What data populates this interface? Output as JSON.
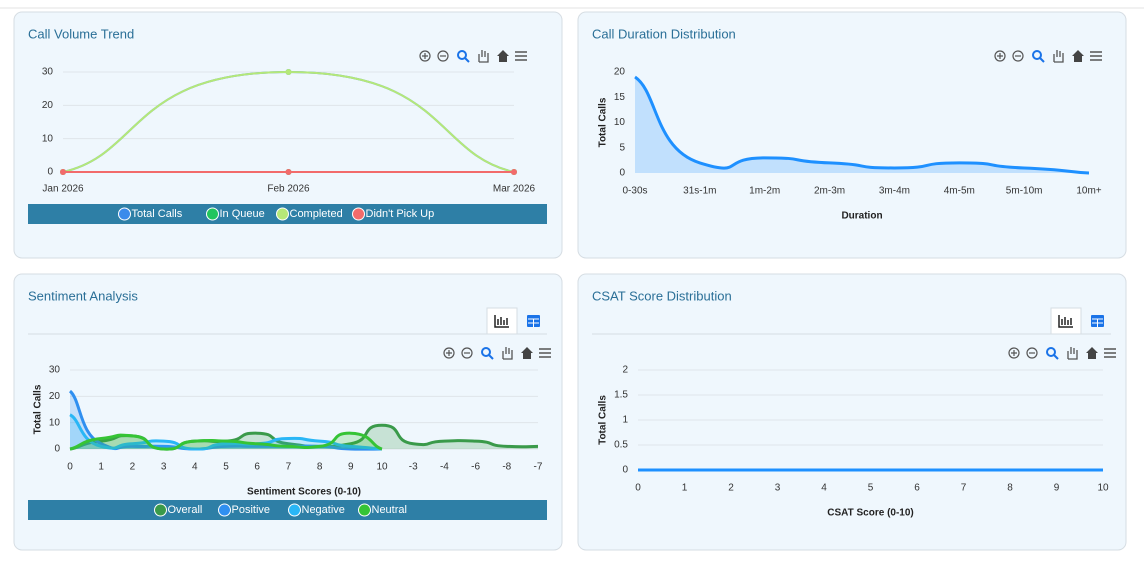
{
  "chart_data": [
    {
      "type": "line",
      "title": "Call Volume Trend",
      "categories": [
        "Jan 2026",
        "Feb 2026",
        "Mar 2026"
      ],
      "series": [
        {
          "name": "Total Calls",
          "color": "#3b8beb",
          "values": [
            0,
            30,
            0
          ]
        },
        {
          "name": "In Queue",
          "color": "#22c55e",
          "values": [
            0,
            0,
            0
          ]
        },
        {
          "name": "Completed",
          "color": "#b5e878",
          "values": [
            0,
            30,
            0
          ]
        },
        {
          "name": "Didn't Pick Up",
          "color": "#f26b6b",
          "values": [
            0,
            0,
            0
          ]
        }
      ],
      "ylim": [
        0,
        30
      ],
      "yticks": [
        0,
        10,
        20,
        30
      ],
      "grid": true,
      "legend": "bottom"
    },
    {
      "type": "area",
      "title": "Call Duration Distribution",
      "x_label": "Duration",
      "y_label": "Total Calls",
      "categories": [
        "0-30s",
        "31s-1m",
        "1m-2m",
        "2m-3m",
        "3m-4m",
        "4m-5m",
        "5m-10m",
        "10m+"
      ],
      "values": [
        19,
        2,
        3,
        2,
        1,
        2,
        1,
        0
      ],
      "color": "#1e90ff",
      "ylim": [
        0,
        20
      ],
      "yticks": [
        0,
        5,
        10,
        15,
        20
      ],
      "grid": false
    },
    {
      "type": "area",
      "title": "Sentiment Analysis",
      "x_label": "Sentiment Scores (0-10)",
      "y_label": "Total Calls",
      "categories": [
        "0",
        "1",
        "2",
        "3",
        "4",
        "5",
        "6",
        "7",
        "8",
        "9",
        "10",
        "-3",
        "-4",
        "-6",
        "-8",
        "-7"
      ],
      "series": [
        {
          "name": "Overall",
          "color": "#3a9a4a",
          "values": [
            0,
            3,
            5,
            0,
            3,
            3,
            6,
            2,
            1,
            2,
            9,
            2,
            3,
            3,
            1,
            1
          ]
        },
        {
          "name": "Positive",
          "color": "#2f8ff0",
          "values": [
            22,
            2,
            1,
            1,
            0,
            1,
            1,
            1,
            1,
            0,
            0,
            null,
            null,
            null,
            null,
            null
          ]
        },
        {
          "name": "Negative",
          "color": "#29b6f6",
          "values": [
            13,
            1,
            2,
            3,
            0,
            2,
            2,
            4,
            3,
            1,
            0,
            null,
            null,
            null,
            null,
            null
          ]
        },
        {
          "name": "Neutral",
          "color": "#35c435",
          "values": [
            0,
            4,
            5,
            0,
            3,
            3,
            2,
            1,
            1,
            6,
            0,
            null,
            null,
            null,
            null,
            null
          ]
        }
      ],
      "ylim": [
        0,
        30
      ],
      "yticks": [
        0,
        10,
        20,
        30
      ],
      "grid": true,
      "legend": "bottom"
    },
    {
      "type": "area",
      "title": "CSAT Score Distribution",
      "x_label": "CSAT Score (0-10)",
      "y_label": "Total Calls",
      "x": [
        0,
        1,
        2,
        3,
        4,
        5,
        6,
        7,
        8,
        9,
        10
      ],
      "values": [
        0,
        0,
        0,
        0,
        0,
        0,
        0,
        0,
        0,
        0,
        0
      ],
      "color": "#1e90ff",
      "xlim": [
        0,
        10
      ],
      "xticks": [
        0,
        1,
        2,
        3,
        4,
        5,
        6,
        7,
        8,
        9,
        10
      ],
      "ylim": [
        0,
        2
      ],
      "yticks": [
        0,
        0.5,
        1,
        1.5,
        2
      ],
      "grid": true
    }
  ]
}
